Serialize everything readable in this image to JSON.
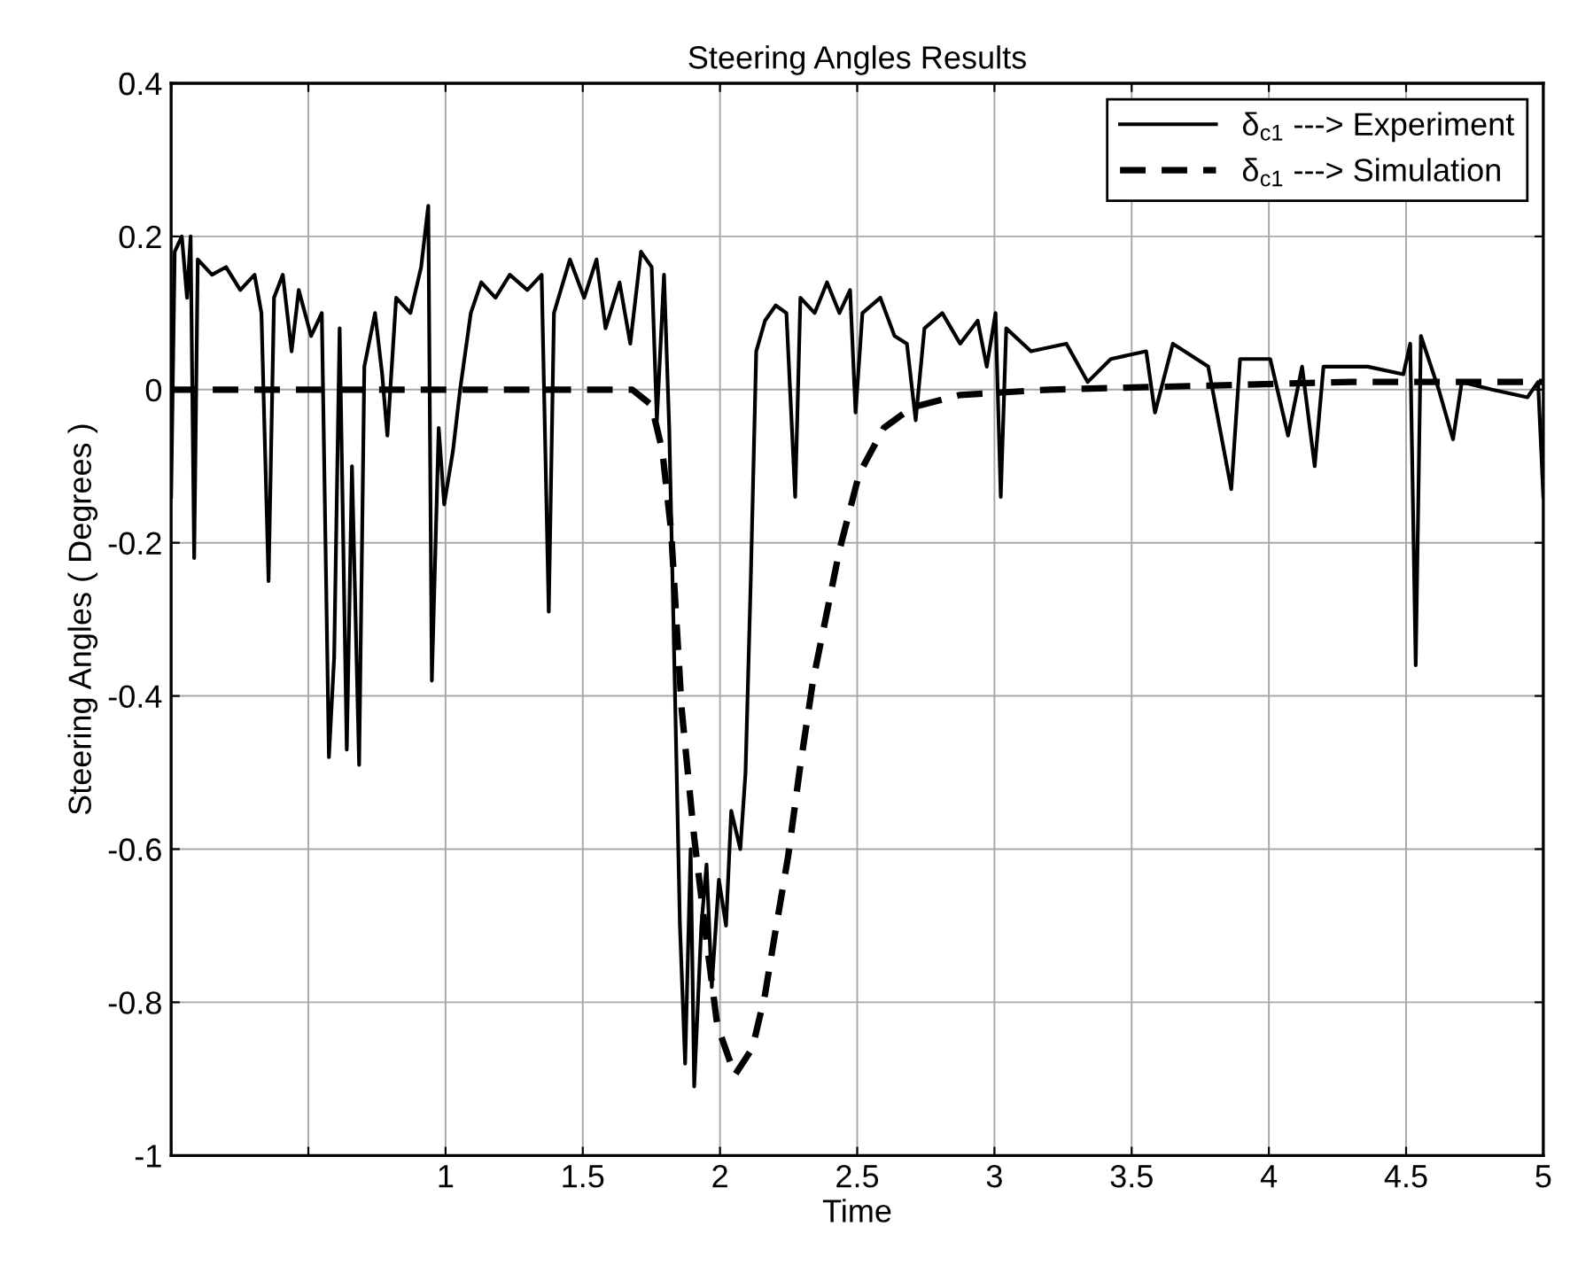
{
  "chart_data": {
    "type": "line",
    "title": "Steering Angles Results",
    "xlabel": "Time",
    "ylabel": "Steering Angles ( Degrees )",
    "xlim": [
      0,
      5
    ],
    "xticks": [
      {
        "value": 0,
        "label": null
      },
      {
        "value": 0.5,
        "label": null
      },
      1,
      1.5,
      2,
      2.5,
      3,
      3.5,
      4,
      4.5,
      5
    ],
    "ylim": [
      -1,
      0.4
    ],
    "yticks": [
      {
        "value": -1,
        "label": "-1"
      },
      {
        "value": -0.8,
        "label": "-0.8"
      },
      {
        "value": -0.6,
        "label": "-0.6"
      },
      {
        "value": -0.4,
        "label": "-0.4"
      },
      {
        "value": -0.2,
        "label": "-0.2"
      },
      0,
      0.2,
      0.4
    ],
    "grid": true,
    "legend": "top right",
    "series": [
      {
        "name": "δ$_{c1}$ ---> Experiment",
        "color": "#000000",
        "line_style": "solid",
        "x": [
          0.0,
          0.013,
          0.039,
          0.058,
          0.071,
          0.084,
          0.097,
          0.149,
          0.2,
          0.252,
          0.304,
          0.329,
          0.355,
          0.375,
          0.407,
          0.439,
          0.465,
          0.51,
          0.549,
          0.575,
          0.594,
          0.614,
          0.64,
          0.659,
          0.685,
          0.704,
          0.743,
          0.769,
          0.788,
          0.82,
          0.872,
          0.911,
          0.937,
          0.95,
          0.975,
          0.995,
          1.027,
          1.053,
          1.092,
          1.13,
          1.182,
          1.234,
          1.298,
          1.35,
          1.376,
          1.395,
          1.453,
          1.505,
          1.55,
          1.583,
          1.634,
          1.673,
          1.712,
          1.751,
          1.77,
          1.796,
          1.815,
          1.835,
          1.854,
          1.873,
          1.893,
          1.906,
          1.932,
          1.951,
          1.97,
          1.996,
          2.022,
          2.041,
          2.074,
          2.093,
          2.112,
          2.132,
          2.164,
          2.203,
          2.242,
          2.274,
          2.293,
          2.345,
          2.39,
          2.435,
          2.474,
          2.494,
          2.519,
          2.584,
          2.636,
          2.681,
          2.713,
          2.745,
          2.81,
          2.875,
          2.939,
          2.972,
          3.004,
          3.023,
          3.043,
          3.133,
          3.262,
          3.34,
          3.424,
          3.553,
          3.585,
          3.65,
          3.779,
          3.863,
          3.895,
          4.005,
          4.07,
          4.121,
          4.167,
          4.199,
          4.36,
          4.49,
          4.515,
          4.535,
          4.554,
          4.619,
          4.671,
          4.703,
          4.813,
          4.942,
          4.981,
          5.0
        ],
        "values": [
          -0.14,
          0.18,
          0.2,
          0.12,
          0.2,
          -0.22,
          0.17,
          0.15,
          0.16,
          0.13,
          0.15,
          0.1,
          -0.25,
          0.12,
          0.15,
          0.05,
          0.13,
          0.07,
          0.1,
          -0.48,
          -0.35,
          0.08,
          -0.47,
          -0.1,
          -0.49,
          0.03,
          0.1,
          0.02,
          -0.06,
          0.12,
          0.1,
          0.16,
          0.24,
          -0.38,
          -0.05,
          -0.15,
          -0.08,
          0.0,
          0.1,
          0.14,
          0.12,
          0.15,
          0.13,
          0.15,
          -0.29,
          0.1,
          0.17,
          0.12,
          0.17,
          0.08,
          0.14,
          0.06,
          0.18,
          0.16,
          -0.04,
          0.15,
          -0.05,
          -0.38,
          -0.7,
          -0.88,
          -0.6,
          -0.91,
          -0.7,
          -0.62,
          -0.78,
          -0.64,
          -0.7,
          -0.55,
          -0.6,
          -0.5,
          -0.25,
          0.05,
          0.09,
          0.11,
          0.1,
          -0.14,
          0.12,
          0.1,
          0.14,
          0.1,
          0.13,
          -0.03,
          0.1,
          0.12,
          0.07,
          0.06,
          -0.04,
          0.08,
          0.1,
          0.06,
          0.09,
          0.03,
          0.1,
          -0.14,
          0.08,
          0.05,
          0.06,
          0.01,
          0.04,
          0.05,
          -0.03,
          0.06,
          0.03,
          -0.13,
          0.04,
          0.04,
          -0.06,
          0.03,
          -0.1,
          0.03,
          0.03,
          0.02,
          0.06,
          -0.36,
          0.07,
          0.0,
          -0.065,
          0.01,
          0.0,
          -0.01,
          0.01,
          -0.14
        ]
      },
      {
        "name": "δ$_{c1}$ ---> Simulation",
        "color": "#000000",
        "line_style": "dashed",
        "x": [
          0,
          1.68,
          1.75,
          1.79,
          1.822,
          1.86,
          1.906,
          1.951,
          1.99,
          2.054,
          2.118,
          2.164,
          2.196,
          2.248,
          2.293,
          2.339,
          2.39,
          2.435,
          2.507,
          2.597,
          2.701,
          2.875,
          3.2,
          4.3,
          5
        ],
        "values": [
          0,
          0,
          -0.02,
          -0.08,
          -0.185,
          -0.416,
          -0.585,
          -0.72,
          -0.83,
          -0.895,
          -0.86,
          -0.79,
          -0.72,
          -0.61,
          -0.49,
          -0.38,
          -0.29,
          -0.21,
          -0.11,
          -0.05,
          -0.023,
          -0.007,
          0,
          0.01,
          0.01
        ]
      }
    ]
  }
}
